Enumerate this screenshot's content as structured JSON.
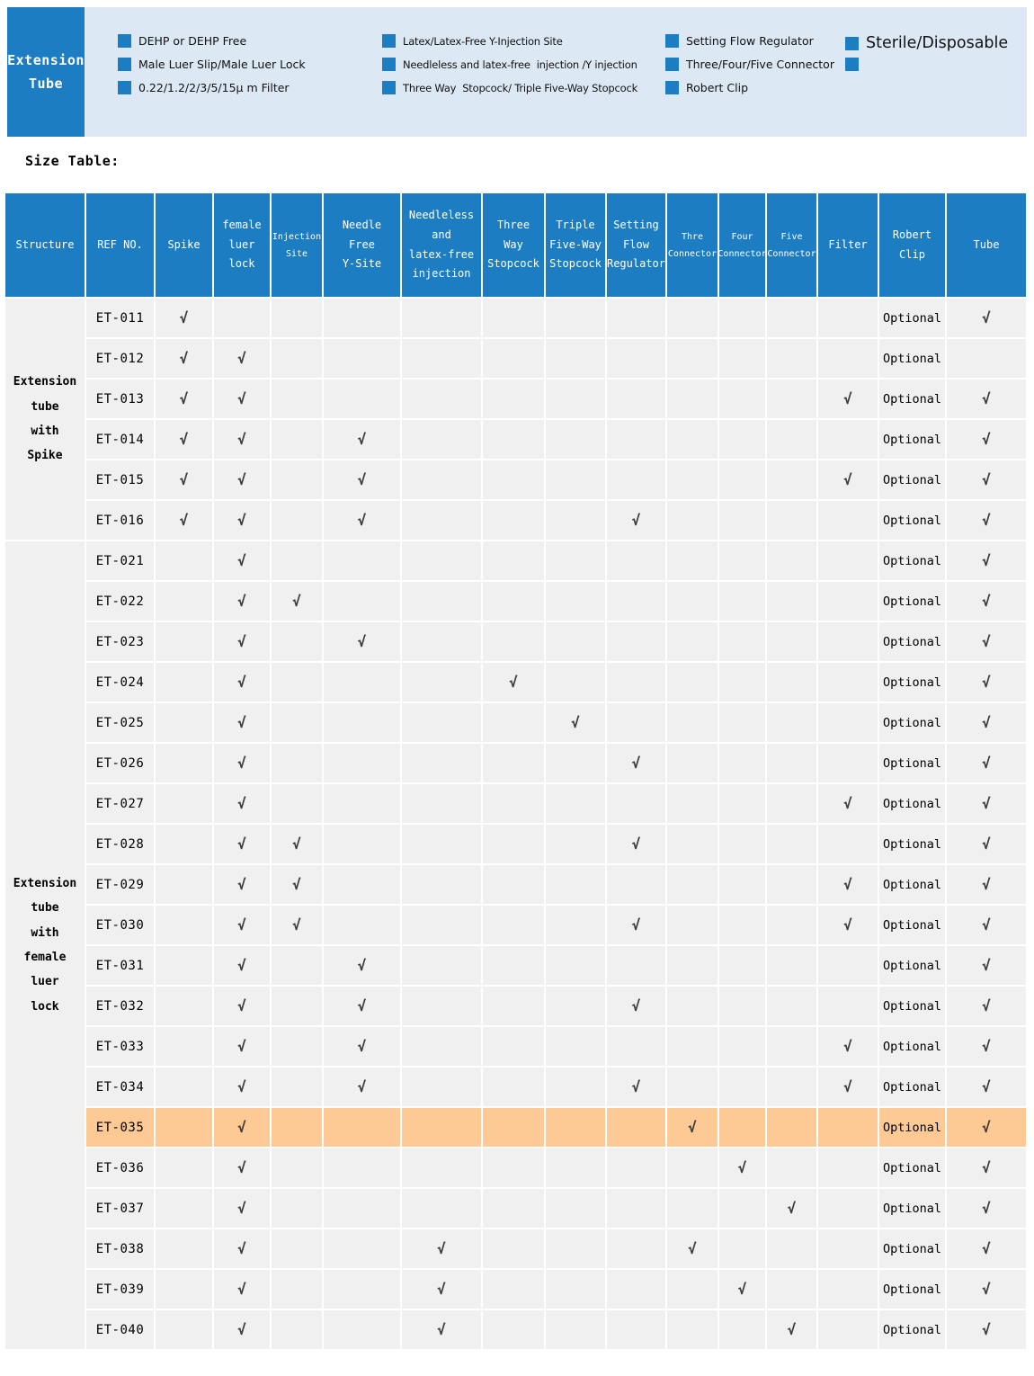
{
  "colors": {
    "primary_blue": "#1d7dc2",
    "banner_background": "#dce8f4",
    "table_cell_background": "#f0f0f0",
    "highlight_orange": "#fdca95",
    "check_color": "#3c3c3c"
  },
  "banner": {
    "product_title_lines": [
      "Extension",
      "Tube"
    ],
    "feature_columns": [
      {
        "items": [
          {
            "text": "DEHP or DEHP Free"
          },
          {
            "text": "Male Luer Slip/Male Luer Lock"
          },
          {
            "text": "0.22/1.2/2/3/5/15μ m Filter"
          }
        ]
      },
      {
        "items": [
          {
            "text": "Latex/Latex-Free Y-Injection Site"
          },
          {
            "text": "Needleless and latex-free  injection /Y injection"
          },
          {
            "text": "Three Way  Stopcock/ Triple Five-Way Stopcock"
          }
        ]
      },
      {
        "items": [
          {
            "text": "Setting Flow Regulator"
          },
          {
            "text": "Three/Four/Five Connector"
          },
          {
            "text": "Robert Clip"
          }
        ]
      },
      {
        "items": [
          {
            "text": "Sterile/Disposable",
            "large": true
          },
          {
            "text": ""
          }
        ]
      }
    ]
  },
  "section_title": "Size Table:",
  "table": {
    "check_mark": "√",
    "header": [
      {
        "lines": [
          "Structure"
        ]
      },
      {
        "lines": [
          "REF NO."
        ]
      },
      {
        "lines": [
          "Spike"
        ]
      },
      {
        "lines": [
          "female",
          "luer",
          "lock"
        ]
      },
      {
        "lines": [
          "Injection",
          "Site"
        ],
        "small": true
      },
      {
        "lines": [
          "Needle",
          "Free",
          "Y-Site"
        ]
      },
      {
        "lines": [
          "Needleless",
          "and",
          "latex-free",
          "injection"
        ]
      },
      {
        "lines": [
          "Three",
          "Way",
          "Stopcock"
        ]
      },
      {
        "lines": [
          "Triple",
          "Five-Way",
          "Stopcock"
        ]
      },
      {
        "lines": [
          "Setting",
          "Flow",
          "Regulator"
        ]
      },
      {
        "lines": [
          "Thre",
          "Connector"
        ],
        "small": true
      },
      {
        "lines": [
          "Four",
          "Connector"
        ],
        "small": true
      },
      {
        "lines": [
          "Five",
          "Connector"
        ],
        "small": true
      },
      {
        "lines": [
          "Filter"
        ]
      },
      {
        "lines": [
          "Robert",
          "Clip"
        ]
      },
      {
        "lines": [
          "Tube"
        ]
      }
    ],
    "feature_keys": [
      "spike",
      "female-luer-lock",
      "injection-site",
      "needle-free-y-site",
      "needleless-injection",
      "three-way-stopcock",
      "triple-five-way-stopcock",
      "setting-flow-regulator",
      "thre-connector",
      "four-connector",
      "five-connector",
      "filter"
    ],
    "groups": [
      {
        "structure_lines": [
          "Extension",
          "tube",
          "with",
          "Spike"
        ],
        "rows": [
          {
            "ref": "ET-011",
            "checks": [
              1,
              0,
              0,
              0,
              0,
              0,
              0,
              0,
              0,
              0,
              0,
              0
            ],
            "robert_clip": "Optional",
            "tube": 1,
            "highlight": false
          },
          {
            "ref": "ET-012",
            "checks": [
              1,
              1,
              0,
              0,
              0,
              0,
              0,
              0,
              0,
              0,
              0,
              0
            ],
            "robert_clip": "Optional",
            "tube": 0,
            "highlight": false
          },
          {
            "ref": "ET-013",
            "checks": [
              1,
              1,
              0,
              0,
              0,
              0,
              0,
              0,
              0,
              0,
              0,
              1
            ],
            "robert_clip": "Optional",
            "tube": 1,
            "highlight": false
          },
          {
            "ref": "ET-014",
            "checks": [
              1,
              1,
              0,
              1,
              0,
              0,
              0,
              0,
              0,
              0,
              0,
              0
            ],
            "robert_clip": "Optional",
            "tube": 1,
            "highlight": false
          },
          {
            "ref": "ET-015",
            "checks": [
              1,
              1,
              0,
              1,
              0,
              0,
              0,
              0,
              0,
              0,
              0,
              1
            ],
            "robert_clip": "Optional",
            "tube": 1,
            "highlight": false
          },
          {
            "ref": "ET-016",
            "checks": [
              1,
              1,
              0,
              1,
              0,
              0,
              0,
              1,
              0,
              0,
              0,
              0
            ],
            "robert_clip": "Optional",
            "tube": 1,
            "highlight": false
          }
        ]
      },
      {
        "structure_lines": [
          "Extension",
          "tube",
          "with",
          "female",
          "luer",
          "lock"
        ],
        "rows": [
          {
            "ref": "ET-021",
            "checks": [
              0,
              1,
              0,
              0,
              0,
              0,
              0,
              0,
              0,
              0,
              0,
              0
            ],
            "robert_clip": "Optional",
            "tube": 1,
            "highlight": false
          },
          {
            "ref": "ET-022",
            "checks": [
              0,
              1,
              1,
              0,
              0,
              0,
              0,
              0,
              0,
              0,
              0,
              0
            ],
            "robert_clip": "Optional",
            "tube": 1,
            "highlight": false
          },
          {
            "ref": "ET-023",
            "checks": [
              0,
              1,
              0,
              1,
              0,
              0,
              0,
              0,
              0,
              0,
              0,
              0
            ],
            "robert_clip": "Optional",
            "tube": 1,
            "highlight": false
          },
          {
            "ref": "ET-024",
            "checks": [
              0,
              1,
              0,
              0,
              0,
              1,
              0,
              0,
              0,
              0,
              0,
              0
            ],
            "robert_clip": "Optional",
            "tube": 1,
            "highlight": false
          },
          {
            "ref": "ET-025",
            "checks": [
              0,
              1,
              0,
              0,
              0,
              0,
              1,
              0,
              0,
              0,
              0,
              0
            ],
            "robert_clip": "Optional",
            "tube": 1,
            "highlight": false
          },
          {
            "ref": "ET-026",
            "checks": [
              0,
              1,
              0,
              0,
              0,
              0,
              0,
              1,
              0,
              0,
              0,
              0
            ],
            "robert_clip": "Optional",
            "tube": 1,
            "highlight": false
          },
          {
            "ref": "ET-027",
            "checks": [
              0,
              1,
              0,
              0,
              0,
              0,
              0,
              0,
              0,
              0,
              0,
              1
            ],
            "robert_clip": "Optional",
            "tube": 1,
            "highlight": false
          },
          {
            "ref": "ET-028",
            "checks": [
              0,
              1,
              1,
              0,
              0,
              0,
              0,
              1,
              0,
              0,
              0,
              0
            ],
            "robert_clip": "Optional",
            "tube": 1,
            "highlight": false
          },
          {
            "ref": "ET-029",
            "checks": [
              0,
              1,
              1,
              0,
              0,
              0,
              0,
              0,
              0,
              0,
              0,
              1
            ],
            "robert_clip": "Optional",
            "tube": 1,
            "highlight": false
          },
          {
            "ref": "ET-030",
            "checks": [
              0,
              1,
              1,
              0,
              0,
              0,
              0,
              1,
              0,
              0,
              0,
              1
            ],
            "robert_clip": "Optional",
            "tube": 1,
            "highlight": false
          },
          {
            "ref": "ET-031",
            "checks": [
              0,
              1,
              0,
              1,
              0,
              0,
              0,
              0,
              0,
              0,
              0,
              0
            ],
            "robert_clip": "Optional",
            "tube": 1,
            "highlight": false
          },
          {
            "ref": "ET-032",
            "checks": [
              0,
              1,
              0,
              1,
              0,
              0,
              0,
              1,
              0,
              0,
              0,
              0
            ],
            "robert_clip": "Optional",
            "tube": 1,
            "highlight": false
          },
          {
            "ref": "ET-033",
            "checks": [
              0,
              1,
              0,
              1,
              0,
              0,
              0,
              0,
              0,
              0,
              0,
              1
            ],
            "robert_clip": "Optional",
            "tube": 1,
            "highlight": false
          },
          {
            "ref": "ET-034",
            "checks": [
              0,
              1,
              0,
              1,
              0,
              0,
              0,
              1,
              0,
              0,
              0,
              1
            ],
            "robert_clip": "Optional",
            "tube": 1,
            "highlight": false
          },
          {
            "ref": "ET-035",
            "checks": [
              0,
              1,
              0,
              0,
              0,
              0,
              0,
              0,
              1,
              0,
              0,
              0
            ],
            "robert_clip": "Optional",
            "tube": 1,
            "highlight": true
          },
          {
            "ref": "ET-036",
            "checks": [
              0,
              1,
              0,
              0,
              0,
              0,
              0,
              0,
              0,
              1,
              0,
              0
            ],
            "robert_clip": "Optional",
            "tube": 1,
            "highlight": false
          },
          {
            "ref": "ET-037",
            "checks": [
              0,
              1,
              0,
              0,
              0,
              0,
              0,
              0,
              0,
              0,
              1,
              0
            ],
            "robert_clip": "Optional",
            "tube": 1,
            "highlight": false
          },
          {
            "ref": "ET-038",
            "checks": [
              0,
              1,
              0,
              0,
              1,
              0,
              0,
              0,
              1,
              0,
              0,
              0
            ],
            "robert_clip": "Optional",
            "tube": 1,
            "highlight": false
          },
          {
            "ref": "ET-039",
            "checks": [
              0,
              1,
              0,
              0,
              1,
              0,
              0,
              0,
              0,
              1,
              0,
              0
            ],
            "robert_clip": "Optional",
            "tube": 1,
            "highlight": false
          },
          {
            "ref": "ET-040",
            "checks": [
              0,
              1,
              0,
              0,
              1,
              0,
              0,
              0,
              0,
              0,
              1,
              0
            ],
            "robert_clip": "Optional",
            "tube": 1,
            "highlight": false
          }
        ]
      }
    ]
  }
}
